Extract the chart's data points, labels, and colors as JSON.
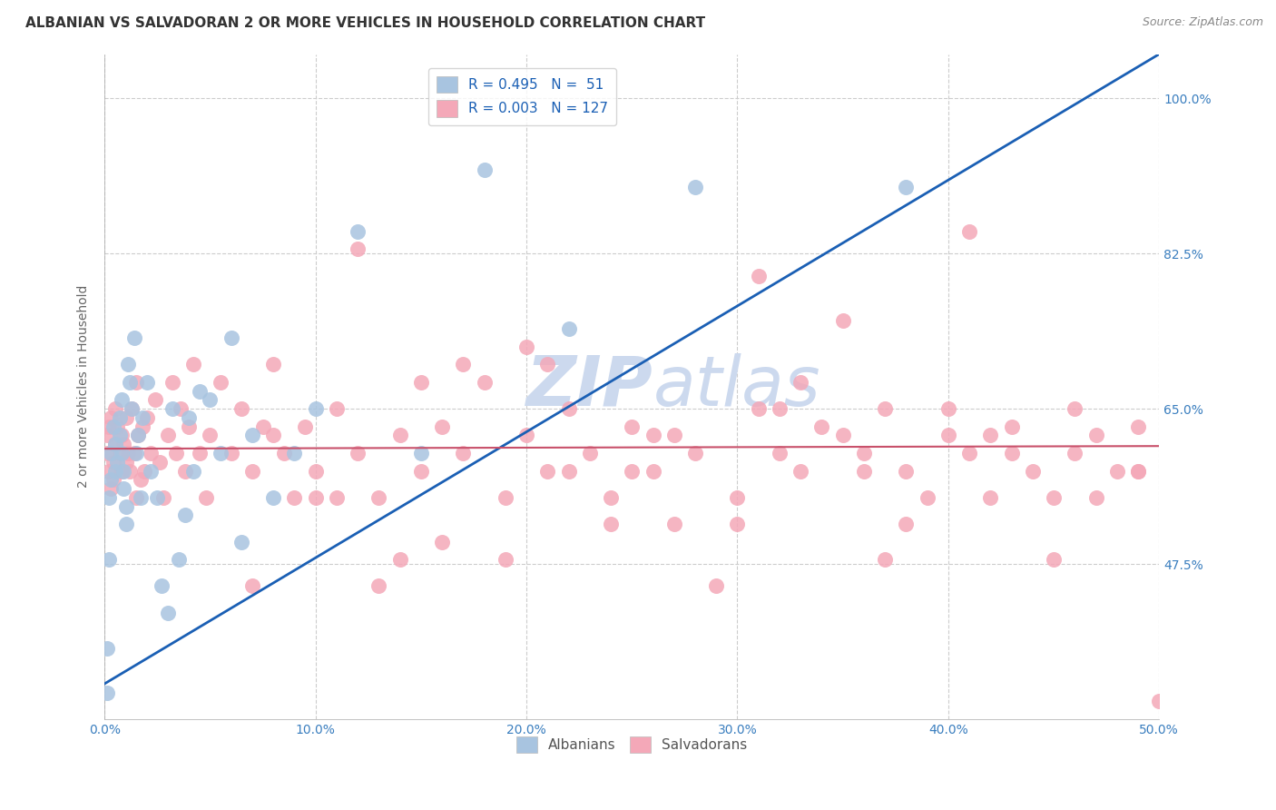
{
  "title": "ALBANIAN VS SALVADORAN 2 OR MORE VEHICLES IN HOUSEHOLD CORRELATION CHART",
  "source": "Source: ZipAtlas.com",
  "ylabel": "2 or more Vehicles in Household",
  "xlim": [
    0.0,
    0.5
  ],
  "ylim": [
    0.3,
    1.05
  ],
  "xtick_labels": [
    "0.0%",
    "10.0%",
    "20.0%",
    "30.0%",
    "40.0%",
    "50.0%"
  ],
  "xtick_vals": [
    0.0,
    0.1,
    0.2,
    0.3,
    0.4,
    0.5
  ],
  "ytick_labels": [
    "100.0%",
    "82.5%",
    "65.0%",
    "47.5%"
  ],
  "ytick_vals": [
    1.0,
    0.825,
    0.65,
    0.475
  ],
  "albanian_R": 0.495,
  "albanian_N": 51,
  "salvadoran_R": 0.003,
  "salvadoran_N": 127,
  "albanian_color": "#a8c4e0",
  "salvadoran_color": "#f4a8b8",
  "albanian_line_color": "#1a5fb4",
  "salvadoran_line_color": "#c8506a",
  "background_color": "#ffffff",
  "grid_color": "#cccccc",
  "watermark_color": "#ccd9ee",
  "title_fontsize": 11,
  "label_fontsize": 10,
  "tick_fontsize": 10,
  "albanian_x": [
    0.001,
    0.001,
    0.002,
    0.002,
    0.003,
    0.003,
    0.004,
    0.005,
    0.005,
    0.006,
    0.007,
    0.007,
    0.008,
    0.008,
    0.009,
    0.009,
    0.01,
    0.01,
    0.011,
    0.012,
    0.013,
    0.014,
    0.015,
    0.016,
    0.017,
    0.018,
    0.02,
    0.022,
    0.025,
    0.027,
    0.03,
    0.032,
    0.035,
    0.038,
    0.04,
    0.042,
    0.045,
    0.05,
    0.055,
    0.06,
    0.065,
    0.07,
    0.08,
    0.09,
    0.1,
    0.12,
    0.15,
    0.18,
    0.22,
    0.28,
    0.38
  ],
  "albanian_y": [
    0.38,
    0.33,
    0.55,
    0.48,
    0.6,
    0.57,
    0.63,
    0.61,
    0.58,
    0.59,
    0.62,
    0.64,
    0.66,
    0.6,
    0.58,
    0.56,
    0.52,
    0.54,
    0.7,
    0.68,
    0.65,
    0.73,
    0.6,
    0.62,
    0.55,
    0.64,
    0.68,
    0.58,
    0.55,
    0.45,
    0.42,
    0.65,
    0.48,
    0.53,
    0.64,
    0.58,
    0.67,
    0.66,
    0.6,
    0.73,
    0.5,
    0.62,
    0.55,
    0.6,
    0.65,
    0.85,
    0.6,
    0.92,
    0.74,
    0.9,
    0.9
  ],
  "salvadoran_x": [
    0.001,
    0.001,
    0.002,
    0.002,
    0.003,
    0.003,
    0.004,
    0.004,
    0.005,
    0.005,
    0.006,
    0.007,
    0.008,
    0.008,
    0.009,
    0.01,
    0.01,
    0.011,
    0.012,
    0.013,
    0.014,
    0.015,
    0.015,
    0.016,
    0.017,
    0.018,
    0.019,
    0.02,
    0.022,
    0.024,
    0.026,
    0.028,
    0.03,
    0.032,
    0.034,
    0.036,
    0.038,
    0.04,
    0.042,
    0.045,
    0.048,
    0.05,
    0.055,
    0.06,
    0.065,
    0.07,
    0.075,
    0.08,
    0.085,
    0.09,
    0.095,
    0.1,
    0.11,
    0.12,
    0.13,
    0.14,
    0.15,
    0.16,
    0.17,
    0.18,
    0.19,
    0.2,
    0.21,
    0.22,
    0.23,
    0.24,
    0.25,
    0.26,
    0.27,
    0.28,
    0.3,
    0.31,
    0.32,
    0.33,
    0.34,
    0.35,
    0.36,
    0.37,
    0.38,
    0.39,
    0.4,
    0.41,
    0.42,
    0.43,
    0.44,
    0.45,
    0.46,
    0.47,
    0.48,
    0.49,
    0.5,
    0.12,
    0.15,
    0.2,
    0.25,
    0.3,
    0.35,
    0.4,
    0.45,
    0.1,
    0.13,
    0.16,
    0.19,
    0.21,
    0.24,
    0.26,
    0.29,
    0.31,
    0.33,
    0.36,
    0.38,
    0.41,
    0.43,
    0.46,
    0.49,
    0.07,
    0.08,
    0.11,
    0.14,
    0.17,
    0.22,
    0.27,
    0.32,
    0.37,
    0.42,
    0.47,
    0.49
  ],
  "salvadoran_y": [
    0.6,
    0.62,
    0.58,
    0.63,
    0.56,
    0.64,
    0.59,
    0.57,
    0.61,
    0.65,
    0.63,
    0.6,
    0.58,
    0.62,
    0.61,
    0.59,
    0.64,
    0.6,
    0.58,
    0.65,
    0.6,
    0.55,
    0.68,
    0.62,
    0.57,
    0.63,
    0.58,
    0.64,
    0.6,
    0.66,
    0.59,
    0.55,
    0.62,
    0.68,
    0.6,
    0.65,
    0.58,
    0.63,
    0.7,
    0.6,
    0.55,
    0.62,
    0.68,
    0.6,
    0.65,
    0.58,
    0.63,
    0.7,
    0.6,
    0.55,
    0.63,
    0.58,
    0.65,
    0.6,
    0.55,
    0.62,
    0.58,
    0.63,
    0.6,
    0.68,
    0.55,
    0.62,
    0.58,
    0.65,
    0.6,
    0.55,
    0.63,
    0.58,
    0.62,
    0.6,
    0.55,
    0.65,
    0.6,
    0.58,
    0.63,
    0.62,
    0.6,
    0.65,
    0.58,
    0.55,
    0.62,
    0.6,
    0.55,
    0.63,
    0.58,
    0.55,
    0.6,
    0.62,
    0.58,
    0.63,
    0.32,
    0.83,
    0.68,
    0.72,
    0.58,
    0.52,
    0.75,
    0.65,
    0.48,
    0.55,
    0.45,
    0.5,
    0.48,
    0.7,
    0.52,
    0.62,
    0.45,
    0.8,
    0.68,
    0.58,
    0.52,
    0.85,
    0.6,
    0.65,
    0.58,
    0.45,
    0.62,
    0.55,
    0.48,
    0.7,
    0.58,
    0.52,
    0.65,
    0.48,
    0.62,
    0.55,
    0.58
  ],
  "alb_line_x": [
    0.0,
    0.5
  ],
  "alb_line_y": [
    0.34,
    1.05
  ],
  "sal_line_x": [
    0.0,
    0.5
  ],
  "sal_line_y": [
    0.605,
    0.608
  ]
}
